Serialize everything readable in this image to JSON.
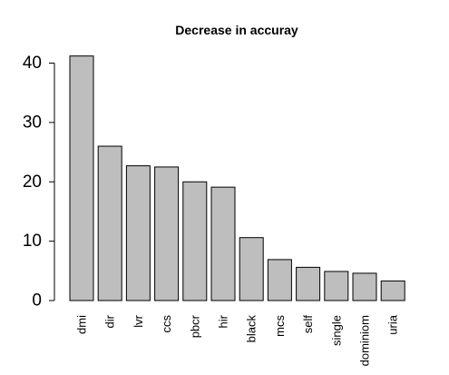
{
  "chart_data": {
    "type": "bar",
    "title": "Decrease in accuray",
    "xlabel": "",
    "ylabel": "",
    "categories": [
      "dmi",
      "dir",
      "lvr",
      "ccs",
      "pbcr",
      "hir",
      "black",
      "mcs",
      "self",
      "single",
      "dominiom",
      "uria"
    ],
    "values": [
      41.2,
      26.0,
      22.7,
      22.5,
      20.0,
      19.1,
      10.6,
      6.9,
      5.6,
      4.9,
      4.6,
      3.3
    ],
    "ylim": [
      0,
      42
    ],
    "yticks": [
      0,
      10,
      20,
      30,
      40
    ],
    "grid": false,
    "bar_color": "#bebebe",
    "edge_color": "#000000"
  }
}
